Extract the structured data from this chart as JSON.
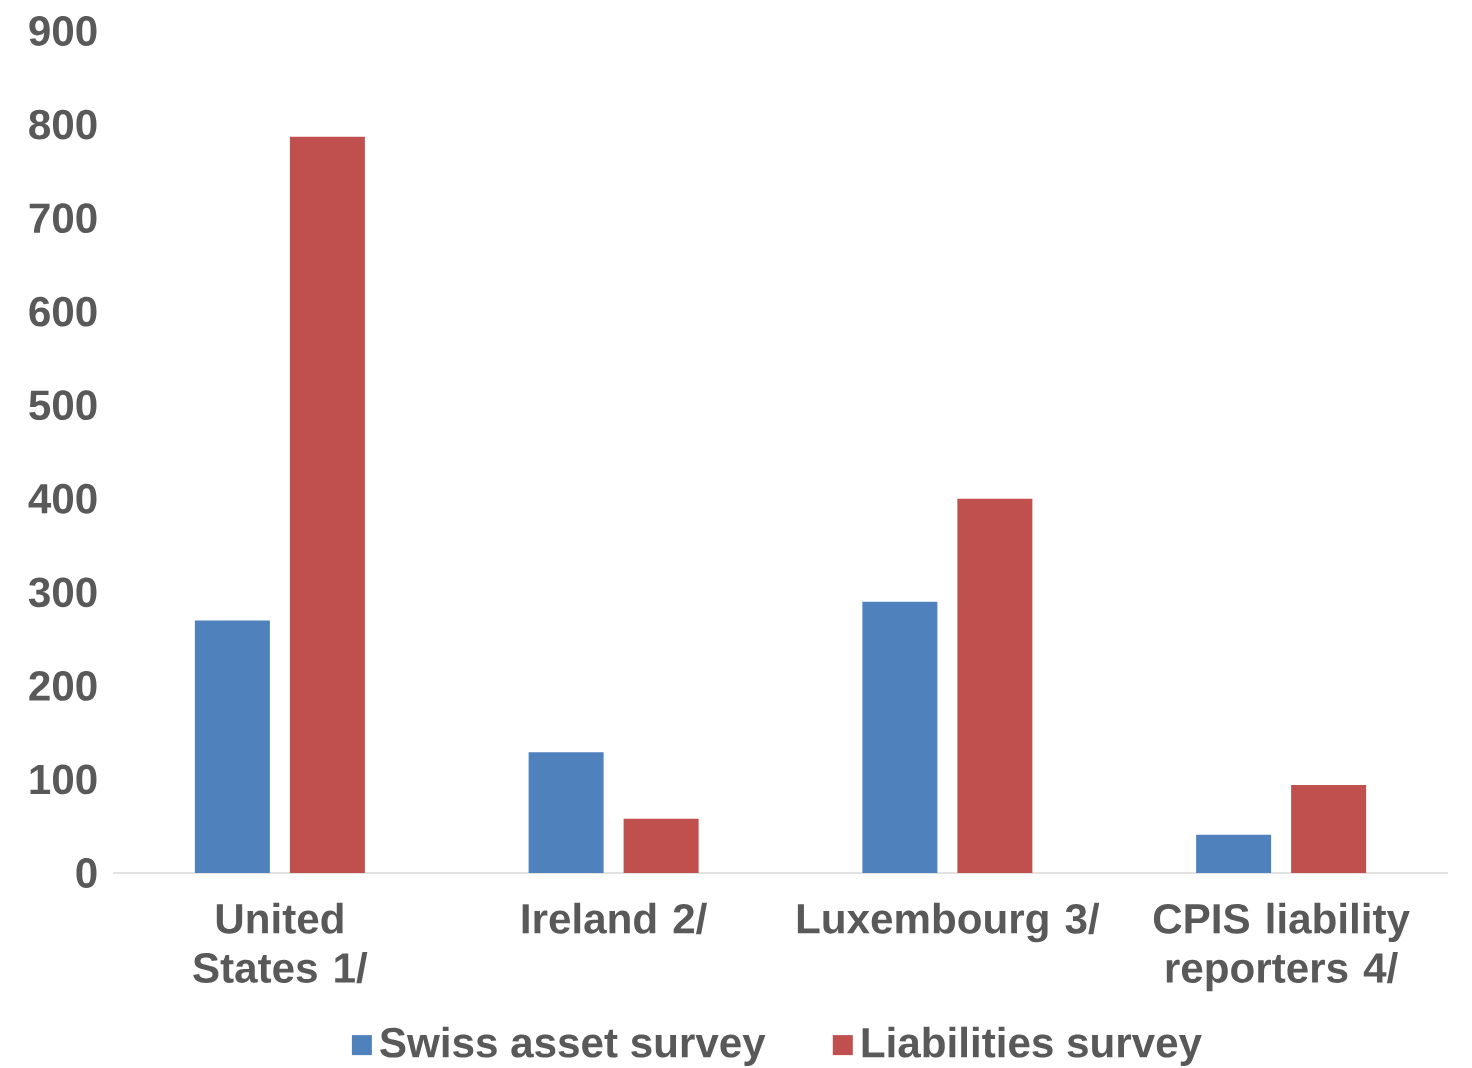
{
  "chart_data": {
    "type": "bar",
    "categories": [
      "United States 1/",
      "Ireland 2/",
      "Luxembourg 3/",
      "CPIS liability reporters 4/"
    ],
    "series": [
      {
        "name": "Swiss asset survey",
        "color": "#4f81bd",
        "values": [
          270,
          129,
          290,
          41
        ]
      },
      {
        "name": "Liabilities survey",
        "color": "#c0504d",
        "values": [
          787,
          58,
          400,
          94
        ]
      }
    ],
    "ylim": [
      0,
      900
    ],
    "yticks": [
      0,
      100,
      200,
      300,
      400,
      500,
      600,
      700,
      800,
      900
    ],
    "legend": "bottom"
  }
}
